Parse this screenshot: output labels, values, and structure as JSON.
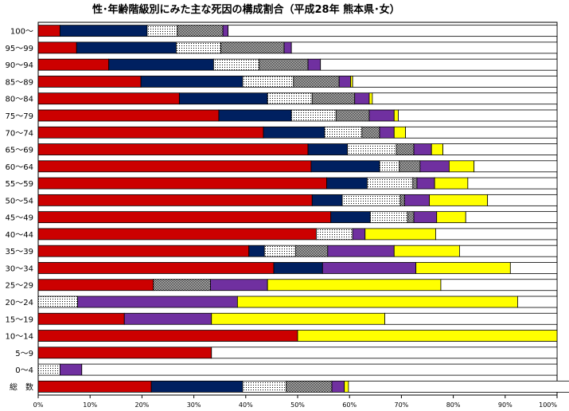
{
  "chart_data": {
    "type": "bar",
    "orientation": "horizontal",
    "stacked": true,
    "normalized": true,
    "title": "性･年齢階級別にみた主な死因の構成割合（平成28年 熊本県･女）",
    "xlim": [
      0,
      100
    ],
    "x_ticks": [
      "0%",
      "10%",
      "20%",
      "30%",
      "40%",
      "50%",
      "60%",
      "70%",
      "80%",
      "90%",
      "100%"
    ],
    "grid": false,
    "categories": [
      "100～",
      "95～99",
      "90～94",
      "85～89",
      "80～84",
      "75～79",
      "70～74",
      "65～69",
      "60～64",
      "55～59",
      "50～54",
      "45～49",
      "40～44",
      "35～39",
      "30～34",
      "25～29",
      "20～24",
      "15～19",
      "10～14",
      "5～9",
      "0～4",
      "総　数"
    ],
    "series": [
      {
        "color": "#cc0000",
        "fill": "solid",
        "values": [
          4.2,
          7.4,
          13.6,
          19.8,
          27.2,
          34.8,
          43.4,
          52.0,
          52.6,
          55.6,
          52.8,
          56.4,
          53.6,
          40.6,
          45.4,
          22.2,
          0,
          16.6,
          50.0,
          33.4,
          0,
          21.8
        ]
      },
      {
        "color": "#002060",
        "fill": "solid",
        "values": [
          16.8,
          19.2,
          20.2,
          19.6,
          17.0,
          14.0,
          11.8,
          7.6,
          13.2,
          7.8,
          5.8,
          7.6,
          0,
          3.0,
          9.4,
          0,
          0,
          0,
          0,
          0,
          0,
          17.6
        ]
      },
      {
        "color": "#ffffff",
        "fill": "dots",
        "values": [
          5.8,
          8.6,
          8.8,
          9.8,
          8.6,
          8.6,
          7.2,
          9.4,
          3.8,
          8.8,
          11.2,
          7.2,
          7.0,
          6.0,
          0,
          0,
          7.6,
          0,
          0,
          0,
          4.2,
          8.4
        ]
      },
      {
        "color": "#404040",
        "fill": "dense-dots",
        "values": [
          8.8,
          12.2,
          9.4,
          8.8,
          8.2,
          6.4,
          3.4,
          3.4,
          4.0,
          0.8,
          0.8,
          1.2,
          0,
          6.2,
          0,
          11.0,
          0,
          0,
          0,
          0,
          0,
          8.8
        ]
      },
      {
        "color": "#7030a0",
        "fill": "solid",
        "values": [
          1.0,
          1.4,
          2.4,
          2.2,
          2.8,
          4.8,
          2.8,
          3.4,
          5.6,
          3.4,
          4.8,
          4.4,
          2.4,
          12.8,
          18.0,
          11.0,
          30.8,
          16.8,
          0,
          0,
          4.2,
          2.4
        ]
      },
      {
        "color": "#ffff00",
        "fill": "solid",
        "values": [
          0,
          0,
          0,
          0.4,
          0.6,
          0.8,
          2.2,
          2.2,
          4.8,
          6.4,
          11.2,
          5.6,
          13.6,
          12.6,
          18.2,
          33.4,
          54.0,
          33.4,
          50.0,
          0,
          0,
          0.8
        ]
      },
      {
        "color": "#ffffff",
        "fill": "solid",
        "values": [
          63.4,
          51.2,
          45.6,
          39.4,
          35.6,
          30.6,
          29.2,
          22.0,
          16.0,
          17.2,
          13.4,
          17.6,
          23.4,
          18.8,
          9.0,
          22.4,
          7.6,
          33.2,
          0,
          66.6,
          91.6,
          48.2
        ]
      }
    ]
  }
}
